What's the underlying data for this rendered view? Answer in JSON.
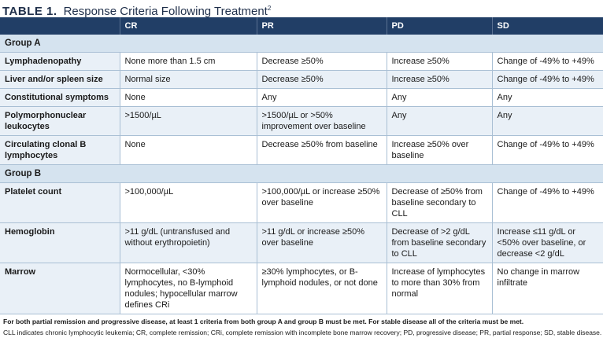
{
  "title": {
    "label": "TABLE 1.",
    "text": "Response Criteria Following Treatment",
    "ref": "2"
  },
  "columns": [
    "",
    "CR",
    "PR",
    "PD",
    "SD"
  ],
  "groups": [
    {
      "name": "Group A",
      "rows": [
        {
          "criterion": "Lymphadenopathy",
          "cr": "None more than 1.5 cm",
          "pr": "Decrease ≥50%",
          "pd": "Increase ≥50%",
          "sd": "Change of -49% to +49%"
        },
        {
          "criterion": "Liver and/or spleen size",
          "cr": "Normal size",
          "pr": "Decrease ≥50%",
          "pd": "Increase ≥50%",
          "sd": "Change of -49% to +49%"
        },
        {
          "criterion": "Constitutional symptoms",
          "cr": "None",
          "pr": "Any",
          "pd": "Any",
          "sd": "Any"
        },
        {
          "criterion": "Polymorphonuclear leukocytes",
          "cr": ">1500/µL",
          "pr": ">1500/µL or >50% improvement over baseline",
          "pd": "Any",
          "sd": "Any"
        },
        {
          "criterion": "Circulating clonal B lymphocytes",
          "cr": "None",
          "pr": "Decrease ≥50% from baseline",
          "pd": "Increase ≥50% over baseline",
          "sd": "Change of -49% to +49%"
        }
      ]
    },
    {
      "name": "Group B",
      "rows": [
        {
          "criterion": "Platelet count",
          "cr": ">100,000/µL",
          "pr": ">100,000/µL or increase ≥50% over baseline",
          "pd": "Decrease of ≥50% from baseline secondary to CLL",
          "sd": "Change of -49% to +49%"
        },
        {
          "criterion": "Hemoglobin",
          "cr": ">11 g/dL (untransfused and without erythropoietin)",
          "pr": ">11 g/dL or increase ≥50% over baseline",
          "pd": "Decrease of >2 g/dL from baseline secondary to CLL",
          "sd": "Increase ≤11 g/dL or <50% over baseline, or decrease <2 g/dL"
        },
        {
          "criterion": "Marrow",
          "cr": "Normocellular, <30% lymphocytes, no B-lymphoid nodules; hypocellular marrow defines CRi",
          "pr": "≥30% lymphocytes, or B-lymphoid nodules, or not done",
          "pd": "Increase of lymphocytes to more than 30% from normal",
          "sd": "No change in marrow infiltrate"
        }
      ]
    }
  ],
  "footnotes": {
    "note1": "For both partial remission and progressive disease, at least 1 criteria from both group A and group B must be met. For stable disease all of the criteria must be met.",
    "note2": "CLL indicates chronic lymphocytic leukemia; CR, complete remission; CRi, complete remission with incomplete bone marrow recovery; PD, progressive disease; PR, partial response; SD, stable disease."
  }
}
